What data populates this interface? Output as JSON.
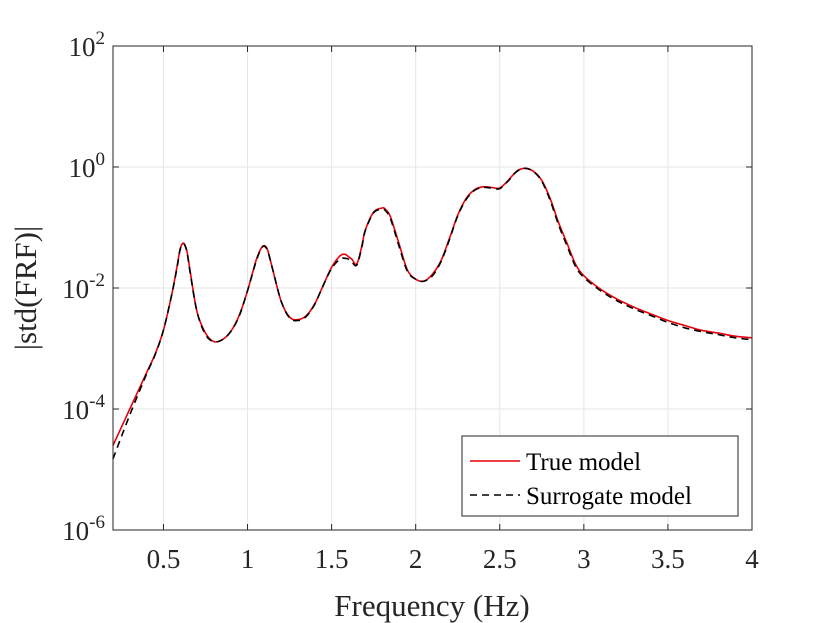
{
  "chart_data": {
    "type": "line",
    "title": "",
    "xlabel": "Frequency (Hz)",
    "ylabel": "|std(FRF)|",
    "xlim": [
      0.2,
      4
    ],
    "ylim": [
      1e-06,
      100
    ],
    "yscale": "log",
    "grid": true,
    "legend_position": "bottom-right",
    "x_ticks": [
      {
        "value": 0.5,
        "label": "0.5"
      },
      {
        "value": 1,
        "label": "1"
      },
      {
        "value": 1.5,
        "label": "1.5"
      },
      {
        "value": 2,
        "label": "2"
      },
      {
        "value": 2.5,
        "label": "2.5"
      },
      {
        "value": 3,
        "label": "3"
      },
      {
        "value": 3.5,
        "label": "3.5"
      },
      {
        "value": 4,
        "label": "4"
      }
    ],
    "y_ticks": [
      {
        "value": 1e-06,
        "base": "10",
        "exp": "-6"
      },
      {
        "value": 0.0001,
        "base": "10",
        "exp": "-4"
      },
      {
        "value": 0.01,
        "base": "10",
        "exp": "-2"
      },
      {
        "value": 1,
        "base": "10",
        "exp": "0"
      },
      {
        "value": 100,
        "base": "10",
        "exp": "2"
      }
    ],
    "series": [
      {
        "name": "True model",
        "color": "#e8000b",
        "dash": "solid",
        "x": [
          0.2,
          0.3,
          0.4,
          0.45,
          0.5,
          0.55,
          0.58,
          0.6,
          0.62,
          0.64,
          0.66,
          0.7,
          0.75,
          0.8,
          0.85,
          0.9,
          0.95,
          1.0,
          1.05,
          1.08,
          1.1,
          1.12,
          1.15,
          1.2,
          1.25,
          1.3,
          1.35,
          1.4,
          1.45,
          1.5,
          1.55,
          1.58,
          1.6,
          1.62,
          1.65,
          1.68,
          1.7,
          1.75,
          1.8,
          1.82,
          1.85,
          1.9,
          1.95,
          2.0,
          2.05,
          2.1,
          2.15,
          2.2,
          2.25,
          2.3,
          2.35,
          2.4,
          2.45,
          2.5,
          2.55,
          2.6,
          2.65,
          2.7,
          2.75,
          2.8,
          2.85,
          2.9,
          2.95,
          3.0,
          3.1,
          3.2,
          3.3,
          3.4,
          3.5,
          3.6,
          3.7,
          3.8,
          3.9,
          4.0
        ],
        "y": [
          2.5e-05,
          0.0001,
          0.0004,
          0.0008,
          0.002,
          0.008,
          0.022,
          0.045,
          0.055,
          0.04,
          0.018,
          0.004,
          0.0018,
          0.0013,
          0.0014,
          0.0019,
          0.0035,
          0.009,
          0.028,
          0.045,
          0.05,
          0.042,
          0.02,
          0.006,
          0.0033,
          0.003,
          0.0035,
          0.0055,
          0.011,
          0.022,
          0.034,
          0.036,
          0.033,
          0.03,
          0.025,
          0.05,
          0.09,
          0.18,
          0.21,
          0.2,
          0.15,
          0.055,
          0.02,
          0.014,
          0.013,
          0.017,
          0.028,
          0.065,
          0.16,
          0.3,
          0.42,
          0.47,
          0.46,
          0.45,
          0.6,
          0.85,
          0.95,
          0.85,
          0.6,
          0.3,
          0.12,
          0.055,
          0.025,
          0.016,
          0.0095,
          0.0065,
          0.0048,
          0.0037,
          0.0029,
          0.0024,
          0.002,
          0.0018,
          0.0016,
          0.0015
        ]
      },
      {
        "name": "Surrogate model",
        "color": "#000000",
        "dash": "dashed",
        "x": [
          0.2,
          0.3,
          0.4,
          0.45,
          0.5,
          0.55,
          0.58,
          0.6,
          0.62,
          0.64,
          0.66,
          0.7,
          0.75,
          0.8,
          0.85,
          0.9,
          0.95,
          1.0,
          1.05,
          1.08,
          1.1,
          1.12,
          1.15,
          1.2,
          1.25,
          1.3,
          1.35,
          1.4,
          1.45,
          1.5,
          1.55,
          1.58,
          1.6,
          1.62,
          1.65,
          1.68,
          1.7,
          1.75,
          1.8,
          1.82,
          1.85,
          1.9,
          1.95,
          2.0,
          2.05,
          2.1,
          2.15,
          2.2,
          2.25,
          2.3,
          2.35,
          2.4,
          2.45,
          2.5,
          2.55,
          2.6,
          2.65,
          2.7,
          2.75,
          2.8,
          2.85,
          2.9,
          2.95,
          3.0,
          3.1,
          3.2,
          3.3,
          3.4,
          3.5,
          3.6,
          3.7,
          3.8,
          3.9,
          4.0
        ],
        "y": [
          1.5e-05,
          8e-05,
          0.00038,
          0.00078,
          0.002,
          0.008,
          0.021,
          0.044,
          0.054,
          0.039,
          0.017,
          0.004,
          0.0017,
          0.0013,
          0.0014,
          0.0019,
          0.0034,
          0.009,
          0.027,
          0.044,
          0.049,
          0.041,
          0.02,
          0.006,
          0.0032,
          0.0029,
          0.0034,
          0.0054,
          0.011,
          0.021,
          0.03,
          0.031,
          0.03,
          0.027,
          0.024,
          0.048,
          0.088,
          0.175,
          0.2,
          0.19,
          0.14,
          0.05,
          0.019,
          0.014,
          0.013,
          0.016,
          0.027,
          0.062,
          0.155,
          0.29,
          0.41,
          0.46,
          0.45,
          0.44,
          0.59,
          0.84,
          0.95,
          0.84,
          0.58,
          0.28,
          0.11,
          0.05,
          0.023,
          0.015,
          0.009,
          0.0061,
          0.0045,
          0.0035,
          0.0027,
          0.0022,
          0.0019,
          0.0017,
          0.0015,
          0.0014
        ]
      }
    ]
  }
}
